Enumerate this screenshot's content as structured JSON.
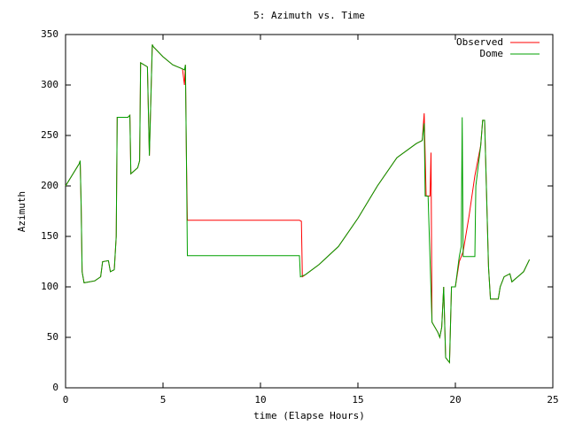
{
  "chart_data": {
    "type": "line",
    "title": "5: Azimuth vs. Time",
    "xlabel": "time (Elapse Hours)",
    "ylabel": "Azimuth",
    "xlim": [
      0,
      25
    ],
    "ylim": [
      0,
      350
    ],
    "xticks": [
      0,
      5,
      10,
      15,
      20,
      25
    ],
    "yticks": [
      0,
      50,
      100,
      150,
      200,
      250,
      300,
      350
    ],
    "grid": false,
    "legend": "top-right",
    "series": [
      {
        "name": "Observed",
        "color": "#ff0000",
        "x": [
          0,
          0.7,
          0.75,
          0.8,
          0.85,
          0.95,
          1.5,
          1.8,
          1.9,
          2.2,
          2.3,
          2.5,
          2.6,
          2.65,
          3.2,
          3.3,
          3.35,
          3.7,
          3.8,
          3.85,
          4.2,
          4.3,
          4.45,
          4.5,
          5,
          5.5,
          6.0,
          6.1,
          6.15,
          6.2,
          6.25,
          12,
          12.1,
          12.15,
          12.3,
          13,
          14,
          15,
          16,
          17,
          18,
          18.3,
          18.4,
          18.5,
          18.7,
          18.75,
          18.8,
          19.1,
          19.2,
          19.3,
          19.4,
          19.5,
          19.7,
          19.8,
          20.0,
          20.2,
          20.4,
          20.7,
          21.0,
          21.3,
          21.4,
          21.5,
          21.7,
          21.8,
          22.2,
          22.3,
          22.5,
          22.8,
          22.9,
          23.2,
          23.5,
          23.8
        ],
        "values": [
          200,
          222,
          225,
          180,
          115,
          104,
          106,
          110,
          125,
          126,
          115,
          117,
          150,
          268,
          268,
          270,
          212,
          218,
          225,
          322,
          318,
          230,
          340,
          338,
          328,
          320,
          316,
          300,
          320,
          230,
          166,
          166,
          165,
          110,
          112,
          122,
          140,
          168,
          200,
          228,
          242,
          245,
          272,
          190,
          190,
          233,
          65,
          55,
          50,
          60,
          100,
          30,
          25,
          100,
          100,
          125,
          135,
          170,
          210,
          240,
          265,
          265,
          120,
          88,
          88,
          100,
          110,
          113,
          105,
          110,
          115,
          127
        ]
      },
      {
        "name": "Dome",
        "color": "#00a000",
        "x": [
          0,
          0.7,
          0.75,
          0.8,
          0.85,
          0.95,
          1.5,
          1.8,
          1.9,
          2.2,
          2.3,
          2.5,
          2.6,
          2.65,
          3.2,
          3.3,
          3.35,
          3.7,
          3.8,
          3.85,
          4.2,
          4.3,
          4.45,
          4.5,
          5,
          5.5,
          6.0,
          6.1,
          6.15,
          6.2,
          6.25,
          12,
          12.05,
          12.3,
          13,
          14,
          15,
          16,
          17,
          18,
          18.3,
          18.4,
          18.45,
          18.6,
          18.8,
          19.1,
          19.2,
          19.3,
          19.4,
          19.5,
          19.7,
          19.8,
          20.0,
          20.2,
          20.3,
          20.35,
          20.4,
          21.0,
          21.05,
          21.3,
          21.4,
          21.5,
          21.7,
          21.8,
          22.2,
          22.3,
          22.5,
          22.8,
          22.9,
          23.2,
          23.5,
          23.8
        ],
        "values": [
          200,
          222,
          225,
          180,
          115,
          104,
          106,
          110,
          125,
          126,
          115,
          117,
          150,
          268,
          268,
          270,
          212,
          218,
          225,
          322,
          318,
          230,
          340,
          338,
          328,
          320,
          316,
          315,
          320,
          230,
          131,
          131,
          110,
          112,
          122,
          140,
          168,
          200,
          228,
          242,
          245,
          262,
          190,
          190,
          65,
          55,
          50,
          60,
          100,
          30,
          25,
          100,
          100,
          130,
          140,
          268,
          130,
          130,
          200,
          240,
          265,
          265,
          120,
          88,
          88,
          100,
          110,
          113,
          105,
          110,
          115,
          127
        ]
      }
    ]
  }
}
